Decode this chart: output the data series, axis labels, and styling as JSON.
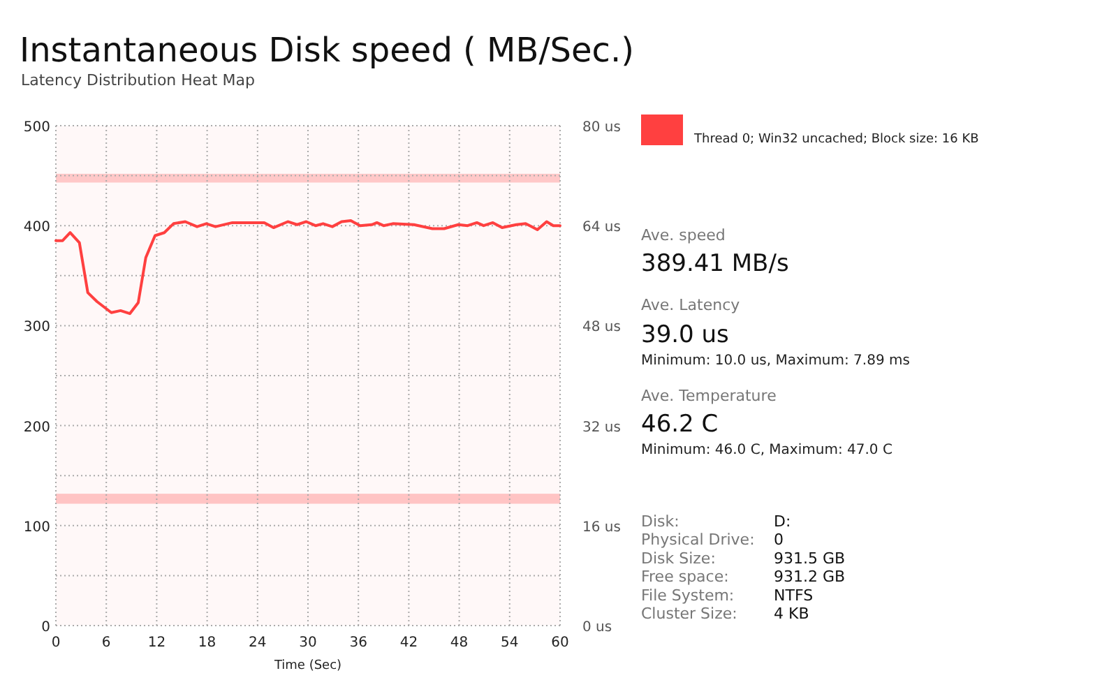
{
  "chart_data": {
    "type": "line",
    "title": "Instantaneous Disk speed ( MB/Sec.)",
    "subtitle": "Latency Distribution Heat Map",
    "xlabel": "Time (Sec)",
    "xlim": [
      0,
      60
    ],
    "xticks": [
      0,
      6,
      12,
      18,
      24,
      30,
      36,
      42,
      48,
      54,
      60
    ],
    "ylim": [
      0,
      500
    ],
    "yticks": [
      0,
      {
        "value": 50,
        "label": null
      },
      100,
      {
        "value": 150,
        "label": null
      },
      200,
      {
        "value": 250,
        "label": null
      },
      300,
      {
        "value": 350,
        "label": null
      },
      400,
      {
        "value": 450,
        "label": null
      },
      500
    ],
    "y2lim": [
      0,
      80
    ],
    "y2ticks": [
      {
        "value": 0,
        "label": "0 us"
      },
      {
        "value": 16,
        "label": "16 us"
      },
      {
        "value": 32,
        "label": "32 us"
      },
      {
        "value": 48,
        "label": "48 us"
      },
      {
        "value": 64,
        "label": "64 us"
      },
      {
        "value": 80,
        "label": "80 us"
      }
    ],
    "grid": true,
    "line_style": "solid",
    "bands": [
      {
        "axis": "y2",
        "from": 70.9,
        "to": 72.3,
        "color": "#ffc8c8"
      },
      {
        "axis": "y2",
        "from": 19.5,
        "to": 21.1,
        "color": "#ffc4c4"
      }
    ],
    "series": [
      {
        "color": "#ff4040",
        "x": [
          0,
          0.8,
          1.7,
          2.8,
          3.8,
          4.9,
          6.6,
          7.7,
          8.8,
          9.8,
          10.7,
          11.8,
          12.9,
          14,
          15.4,
          16.8,
          17.9,
          19,
          21,
          24.8,
          25.9,
          27.6,
          28.7,
          29.8,
          30.9,
          31.8,
          32.9,
          34,
          35.1,
          36.2,
          37.6,
          38.2,
          39,
          40.1,
          42.6,
          44.8,
          46.2,
          47.9,
          49,
          50.1,
          50.9,
          52,
          53.1,
          54.8,
          55.9,
          57.3,
          58.4,
          59.2,
          60
        ],
        "values": [
          385,
          385,
          393,
          383,
          333,
          324,
          313,
          315,
          312,
          323,
          368,
          390,
          393,
          402,
          404,
          399,
          402,
          399,
          403,
          403,
          398,
          404,
          401,
          404,
          400,
          402,
          399,
          404,
          405,
          400,
          401,
          403,
          400,
          402,
          401,
          397,
          397,
          401,
          400,
          403,
          400,
          403,
          398,
          401,
          402,
          396,
          404,
          400,
          400
        ]
      }
    ],
    "annotations": [
      "Thread 0; Win32 uncached; Block size: 16 KB",
      "Ave. speed",
      "389.41 MB/s",
      "Ave. Latency",
      "39.0 us",
      "Minimum: 10.0 us, Maximum: 7.89 ms",
      "Ave. Temperature",
      "46.2 C",
      "Minimum: 46.0 C, Maximum: 47.0 C",
      "Disk:",
      "D:",
      "Physical Drive:",
      "0",
      "Disk Size:",
      "931.5 GB",
      "Free space:",
      "931.2 GB",
      "File System:",
      "NTFS",
      "Cluster Size:",
      "4 KB"
    ]
  }
}
